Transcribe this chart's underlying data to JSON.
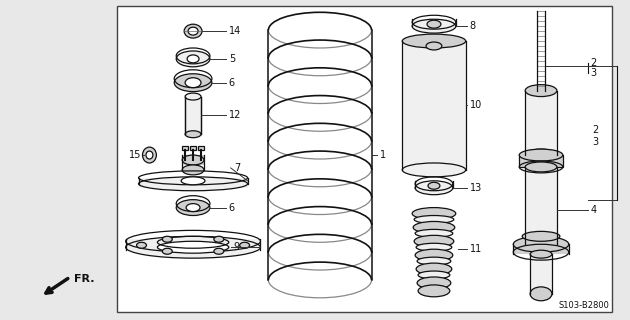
{
  "bg_color": "#ffffff",
  "outer_bg": "#e8e8e8",
  "border_color": "#444444",
  "line_color": "#111111",
  "text_color": "#111111",
  "gray_fill": "#d0d0d0",
  "light_fill": "#f0f0f0",
  "diagram_code": "S103-B2800",
  "figsize": [
    6.3,
    3.2
  ],
  "dpi": 100
}
